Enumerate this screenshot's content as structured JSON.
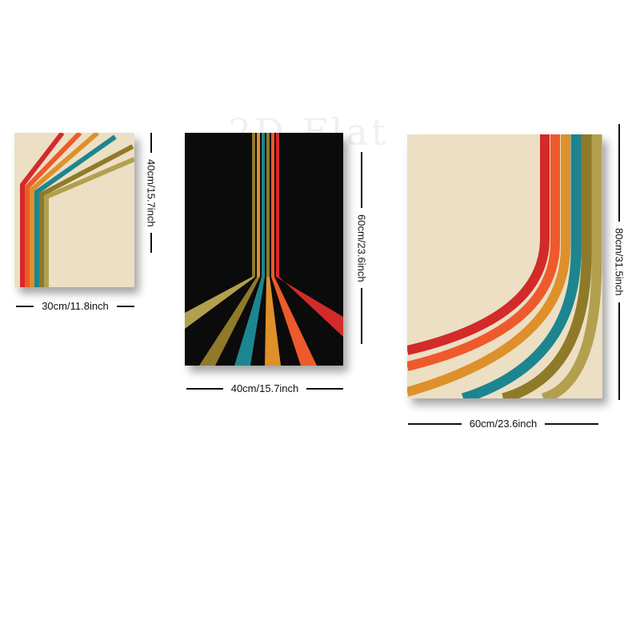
{
  "watermark": "2D Flat",
  "colors": {
    "cream": "#ecdfc4",
    "black": "#0b0b0b",
    "red": "#d32a2a",
    "orange": "#ee5a2b",
    "amber": "#de902b",
    "teal": "#1d8590",
    "olive": "#8f7a2a",
    "khaki": "#b2a04f"
  },
  "posters": [
    {
      "width_label": "30cm/11.8inch",
      "height_label": "40cm/15.7inch"
    },
    {
      "width_label": "40cm/15.7inch",
      "height_label": "60cm/23.6inch"
    },
    {
      "width_label": "60cm/23.6inch",
      "height_label": "80cm/31.5inch"
    }
  ]
}
